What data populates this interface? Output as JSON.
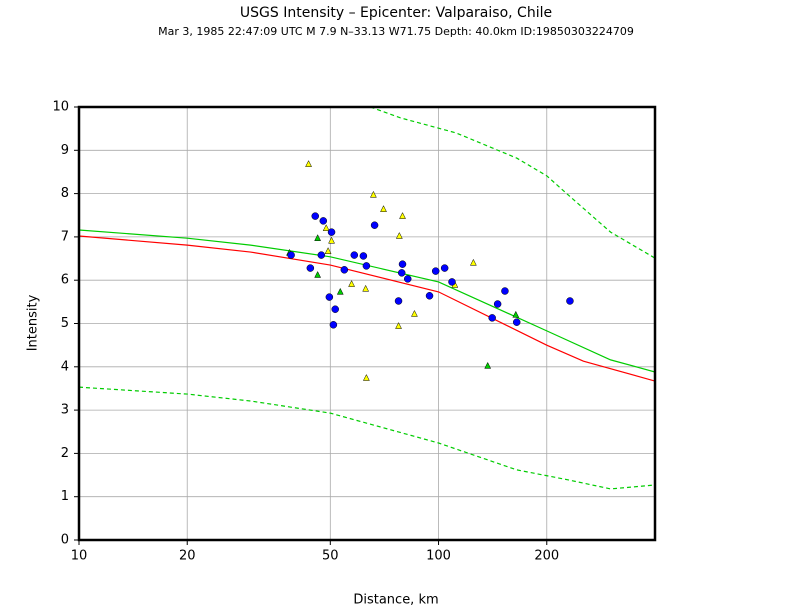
{
  "chart_data": {
    "type": "scatter",
    "title": "USGS Intensity –  Epicenter: Valparaiso, Chile",
    "subtitle": "Mar  3, 1985 22:47:09 UTC   M 7.9   N–33.13 W71.75   Depth: 40.0km   ID:19850303224709",
    "x_label": "Distance, km",
    "y_label": "Intensity",
    "xscale": "log",
    "xlim": [
      10,
      400
    ],
    "ylim": [
      0,
      10
    ],
    "xticks": [
      10,
      20,
      50,
      100,
      200
    ],
    "yticks": [
      0,
      1,
      2,
      3,
      4,
      5,
      6,
      7,
      8,
      9,
      10
    ],
    "grid": true,
    "series": [
      {
        "kind": "line",
        "style": "dashed",
        "color": "#00cc00",
        "x": [
          64.7,
          78.3,
          112,
          165,
          200,
          233,
          301,
          400
        ],
        "values": [
          10,
          9.75,
          9.4,
          8.82,
          8.41,
          7.92,
          7.11,
          6.51
        ]
      },
      {
        "kind": "line",
        "style": "dashed",
        "color": "#00cc00",
        "x": [
          10,
          20,
          30,
          50,
          100,
          165,
          229,
          301,
          400
        ],
        "values": [
          3.53,
          3.37,
          3.21,
          2.93,
          2.24,
          1.62,
          1.39,
          1.18,
          1.27
        ]
      },
      {
        "kind": "line",
        "style": "solid",
        "color": "#00cc00",
        "x": [
          10,
          20,
          30,
          50,
          100,
          200,
          301,
          400
        ],
        "values": [
          7.16,
          6.97,
          6.81,
          6.54,
          5.96,
          4.83,
          4.16,
          3.88
        ]
      },
      {
        "kind": "line",
        "style": "solid",
        "color": "#ff0000",
        "x": [
          10,
          20,
          30,
          50,
          100,
          200,
          253,
          400
        ],
        "values": [
          7.02,
          6.81,
          6.65,
          6.35,
          5.73,
          4.5,
          4.13,
          3.67
        ]
      },
      {
        "kind": "points",
        "marker": "triangle",
        "color": "#ffff00",
        "x": [
          43.5,
          65.9,
          70.3,
          79.4,
          48.7,
          77.8,
          50.4,
          49.3,
          125,
          57.3,
          62.7,
          111,
          85.7,
          77.4,
          63
        ],
        "values": [
          8.68,
          7.97,
          7.64,
          7.48,
          7.2,
          7.02,
          6.91,
          6.67,
          6.4,
          5.91,
          5.8,
          5.89,
          5.22,
          4.94,
          3.74
        ]
      },
      {
        "kind": "points",
        "marker": "triangle",
        "color": "#00cc00",
        "x": [
          46.1,
          38.5,
          46.1,
          53.3,
          137,
          164
        ],
        "values": [
          6.97,
          6.63,
          6.12,
          5.73,
          4.02,
          5.2
        ]
      },
      {
        "kind": "points",
        "marker": "circle",
        "color": "#0000ff",
        "x": [
          38.9,
          45.4,
          47.8,
          50.4,
          66.4,
          47.2,
          44,
          54.7,
          58.3,
          61.8,
          63,
          79.4,
          79,
          82.1,
          98.2,
          104,
          109,
          49.7,
          51.6,
          51,
          77.4,
          94.4,
          153,
          146,
          141,
          165,
          232
        ],
        "values": [
          6.58,
          7.48,
          7.37,
          7.11,
          7.27,
          6.58,
          6.28,
          6.24,
          6.58,
          6.56,
          6.33,
          6.37,
          6.17,
          6.03,
          6.21,
          6.28,
          5.96,
          5.61,
          5.33,
          4.97,
          5.52,
          5.64,
          5.75,
          5.45,
          5.13,
          5.03,
          5.52
        ]
      }
    ]
  }
}
